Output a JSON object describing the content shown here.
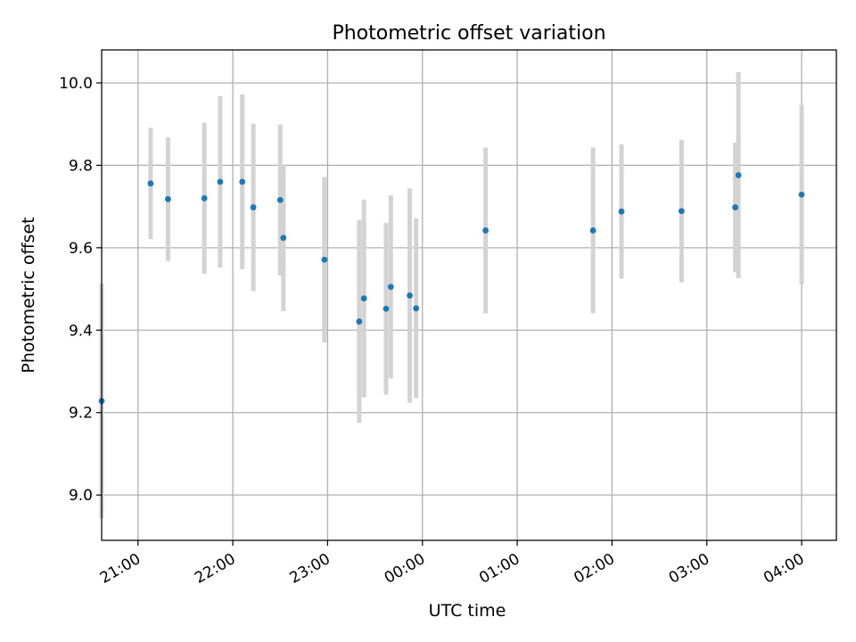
{
  "chart_data": {
    "type": "scatter",
    "title": "Photometric offset variation",
    "xlabel": "UTC time",
    "ylabel": "Photometric offset",
    "x_axis_type": "time",
    "xlim": [
      "20:37",
      "04:22"
    ],
    "ylim": [
      8.89,
      10.08
    ],
    "x_ticks": [
      "21:00",
      "22:00",
      "23:00",
      "00:00",
      "01:00",
      "02:00",
      "03:00",
      "04:00"
    ],
    "y_ticks": [
      9.0,
      9.2,
      9.4,
      9.6,
      9.8,
      10.0
    ],
    "y_tick_labels": [
      "9.0",
      "9.2",
      "9.4",
      "9.6",
      "9.8",
      "10.0"
    ],
    "x_tick_label_rotation_deg": 30,
    "grid": true,
    "marker_color": "#1f77b4",
    "errorbar_color": "#d3d3d3",
    "series": [
      {
        "points": [
          {
            "t": "20:37",
            "y": 9.228,
            "err_low": 0.285,
            "err_high": 0.285
          },
          {
            "t": "21:08",
            "y": 9.756,
            "err_low": 0.135,
            "err_high": 0.135
          },
          {
            "t": "21:19",
            "y": 9.718,
            "err_low": 0.15,
            "err_high": 0.15
          },
          {
            "t": "21:42",
            "y": 9.72,
            "err_low": 0.183,
            "err_high": 0.183
          },
          {
            "t": "21:52",
            "y": 9.76,
            "err_low": 0.208,
            "err_high": 0.208
          },
          {
            "t": "22:06",
            "y": 9.76,
            "err_low": 0.212,
            "err_high": 0.212
          },
          {
            "t": "22:13",
            "y": 9.698,
            "err_low": 0.203,
            "err_high": 0.203
          },
          {
            "t": "22:30",
            "y": 9.716,
            "err_low": 0.183,
            "err_high": 0.183
          },
          {
            "t": "22:32",
            "y": 9.624,
            "err_low": 0.178,
            "err_high": 0.178
          },
          {
            "t": "22:58",
            "y": 9.571,
            "err_low": 0.201,
            "err_high": 0.201
          },
          {
            "t": "23:20",
            "y": 9.421,
            "err_low": 0.246,
            "err_high": 0.246
          },
          {
            "t": "23:23",
            "y": 9.477,
            "err_low": 0.24,
            "err_high": 0.24
          },
          {
            "t": "23:37",
            "y": 9.452,
            "err_low": 0.208,
            "err_high": 0.208
          },
          {
            "t": "23:40",
            "y": 9.505,
            "err_low": 0.222,
            "err_high": 0.222
          },
          {
            "t": "23:52",
            "y": 9.484,
            "err_low": 0.26,
            "err_high": 0.26
          },
          {
            "t": "23:56",
            "y": 9.453,
            "err_low": 0.218,
            "err_high": 0.218
          },
          {
            "t": "00:40",
            "y": 9.642,
            "err_low": 0.201,
            "err_high": 0.201
          },
          {
            "t": "01:48",
            "y": 9.642,
            "err_low": 0.201,
            "err_high": 0.201
          },
          {
            "t": "02:06",
            "y": 9.688,
            "err_low": 0.163,
            "err_high": 0.163
          },
          {
            "t": "02:44",
            "y": 9.689,
            "err_low": 0.173,
            "err_high": 0.173
          },
          {
            "t": "03:18",
            "y": 9.698,
            "err_low": 0.157,
            "err_high": 0.157
          },
          {
            "t": "03:20",
            "y": 9.776,
            "err_low": 0.25,
            "err_high": 0.25
          },
          {
            "t": "04:00",
            "y": 9.729,
            "err_low": 0.218,
            "err_high": 0.218
          }
        ]
      }
    ]
  }
}
